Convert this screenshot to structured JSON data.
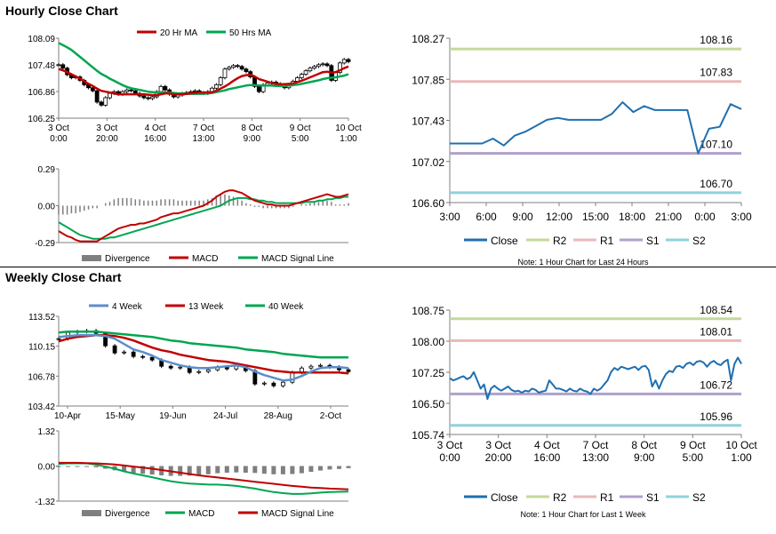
{
  "hourly_title": "Hourly Close Chart",
  "weekly_title": "Weekly Close Chart",
  "colors": {
    "ma_short": "#c00000",
    "ma_long": "#00a651",
    "close": "#1f6fb0",
    "r2": "#c4d89a",
    "r1": "#eab8b8",
    "s1": "#b0a0cc",
    "s2": "#92d0de",
    "candle": "#000000",
    "divergence": "#7f7f7f",
    "ma4": "#5b8ecb",
    "axis": "#7f7f7f"
  },
  "chart_data": [
    {
      "id": "hourly_price",
      "type": "line",
      "title": "Hourly Close Chart",
      "legend": [
        "20 Hr MA",
        "50 Hrs MA"
      ],
      "x_ticks": [
        [
          "3 Oct",
          "0:00"
        ],
        [
          "3 Oct",
          "20:00"
        ],
        [
          "4 Oct",
          "16:00"
        ],
        [
          "7 Oct",
          "13:00"
        ],
        [
          "8 Oct",
          "9:00"
        ],
        [
          "9 Oct",
          "5:00"
        ],
        [
          "10 Oct",
          "1:00"
        ]
      ],
      "y_ticks": [
        "108.09",
        "107.48",
        "106.86",
        "106.25"
      ],
      "ylim": [
        106.25,
        108.09
      ],
      "close": [
        107.48,
        107.4,
        107.25,
        107.18,
        107.2,
        107.12,
        107.02,
        106.95,
        106.88,
        106.62,
        106.55,
        106.72,
        106.82,
        106.86,
        106.8,
        106.86,
        106.9,
        106.88,
        106.82,
        106.76,
        106.72,
        106.7,
        106.74,
        106.86,
        106.98,
        106.9,
        106.8,
        106.74,
        106.78,
        106.82,
        106.84,
        106.86,
        106.88,
        106.84,
        106.82,
        106.86,
        106.94,
        107.02,
        107.18,
        107.38,
        107.42,
        107.46,
        107.44,
        107.38,
        107.32,
        107.2,
        106.98,
        106.86,
        107.02,
        107.06,
        107.08,
        107.04,
        107.0,
        106.95,
        107.02,
        107.1,
        107.18,
        107.26,
        107.34,
        107.4,
        107.44,
        107.48,
        107.5,
        107.46,
        107.12,
        107.3,
        107.52,
        107.6,
        107.55
      ],
      "ma20": [
        107.38,
        107.35,
        107.31,
        107.26,
        107.21,
        107.16,
        107.1,
        107.04,
        106.99,
        106.93,
        106.88,
        106.86,
        106.84,
        106.82,
        106.8,
        106.8,
        106.8,
        106.8,
        106.8,
        106.8,
        106.8,
        106.79,
        106.78,
        106.78,
        106.8,
        106.82,
        106.82,
        106.8,
        106.8,
        106.8,
        106.81,
        106.82,
        106.83,
        106.84,
        106.84,
        106.84,
        106.85,
        106.88,
        106.93,
        106.98,
        107.04,
        107.11,
        107.17,
        107.22,
        107.24,
        107.25,
        107.21,
        107.15,
        107.12,
        107.09,
        107.06,
        107.04,
        107.03,
        107.03,
        107.04,
        107.05,
        107.08,
        107.11,
        107.15,
        107.19,
        107.23,
        107.27,
        107.31,
        107.32,
        107.3,
        107.31,
        107.35,
        107.4,
        107.44
      ],
      "ma50": [
        107.98,
        107.93,
        107.88,
        107.82,
        107.74,
        107.66,
        107.58,
        107.5,
        107.42,
        107.34,
        107.27,
        107.22,
        107.16,
        107.11,
        107.06,
        107.01,
        106.97,
        106.94,
        106.92,
        106.9,
        106.88,
        106.86,
        106.85,
        106.84,
        106.84,
        106.84,
        106.84,
        106.83,
        106.82,
        106.82,
        106.81,
        106.81,
        106.81,
        106.81,
        106.81,
        106.82,
        106.83,
        106.85,
        106.87,
        106.89,
        106.92,
        106.94,
        106.96,
        106.98,
        107.0,
        107.01,
        107.01,
        107.0,
        107.0,
        107.0,
        107.0,
        106.99,
        106.99,
        106.99,
        107.0,
        107.01,
        107.02,
        107.04,
        107.06,
        107.08,
        107.1,
        107.12,
        107.15,
        107.17,
        107.18,
        107.19,
        107.21,
        107.23,
        107.26
      ]
    },
    {
      "id": "hourly_macd",
      "type": "line",
      "legend": [
        "Divergence",
        "MACD",
        "MACD Signal Line"
      ],
      "y_ticks": [
        "0.29",
        "0.00",
        "-0.29"
      ],
      "ylim": [
        -0.29,
        0.29
      ],
      "macd": [
        -0.2,
        -0.22,
        -0.24,
        -0.25,
        -0.27,
        -0.28,
        -0.28,
        -0.28,
        -0.28,
        -0.28,
        -0.26,
        -0.24,
        -0.22,
        -0.2,
        -0.18,
        -0.17,
        -0.16,
        -0.15,
        -0.15,
        -0.14,
        -0.14,
        -0.13,
        -0.12,
        -0.11,
        -0.09,
        -0.08,
        -0.07,
        -0.06,
        -0.06,
        -0.05,
        -0.04,
        -0.03,
        -0.02,
        -0.01,
        0.0,
        0.02,
        0.04,
        0.07,
        0.09,
        0.11,
        0.12,
        0.12,
        0.11,
        0.1,
        0.08,
        0.06,
        0.04,
        0.03,
        0.02,
        0.01,
        0.01,
        0.0,
        0.0,
        0.0,
        0.0,
        0.01,
        0.02,
        0.03,
        0.04,
        0.05,
        0.06,
        0.07,
        0.08,
        0.09,
        0.08,
        0.07,
        0.07,
        0.08,
        0.09
      ],
      "signal": [
        -0.13,
        -0.15,
        -0.17,
        -0.19,
        -0.21,
        -0.23,
        -0.24,
        -0.25,
        -0.26,
        -0.26,
        -0.26,
        -0.26,
        -0.25,
        -0.25,
        -0.24,
        -0.23,
        -0.22,
        -0.21,
        -0.2,
        -0.19,
        -0.18,
        -0.17,
        -0.16,
        -0.15,
        -0.14,
        -0.13,
        -0.12,
        -0.11,
        -0.1,
        -0.09,
        -0.08,
        -0.07,
        -0.06,
        -0.05,
        -0.04,
        -0.03,
        -0.02,
        -0.01,
        0.0,
        0.02,
        0.04,
        0.05,
        0.06,
        0.06,
        0.06,
        0.05,
        0.05,
        0.04,
        0.04,
        0.03,
        0.03,
        0.02,
        0.02,
        0.02,
        0.02,
        0.02,
        0.02,
        0.02,
        0.03,
        0.03,
        0.03,
        0.04,
        0.04,
        0.05,
        0.05,
        0.06,
        0.06,
        0.07,
        0.07
      ]
    },
    {
      "id": "hourly_levels",
      "type": "line",
      "legend": [
        "Close",
        "R2",
        "R1",
        "S1",
        "S2"
      ],
      "note": "Note: 1 Hour Chart for Last 24 Hours",
      "x_ticks": [
        "3:00",
        "6:00",
        "9:00",
        "12:00",
        "15:00",
        "18:00",
        "21:00",
        "0:00",
        "3:00"
      ],
      "y_ticks": [
        "108.27",
        "107.85",
        "107.43",
        "107.02",
        "106.60"
      ],
      "ylim": [
        106.6,
        108.27
      ],
      "close": [
        107.2,
        107.2,
        107.2,
        107.2,
        107.25,
        107.18,
        107.28,
        107.32,
        107.38,
        107.44,
        107.46,
        107.44,
        107.44,
        107.44,
        107.44,
        107.5,
        107.62,
        107.52,
        107.58,
        107.54,
        107.54,
        107.54,
        107.54,
        107.1,
        107.35,
        107.37,
        107.6,
        107.55
      ],
      "levels": [
        {
          "name": "R2",
          "value": 108.16,
          "label": "108.16"
        },
        {
          "name": "R1",
          "value": 107.83,
          "label": "107.83"
        },
        {
          "name": "S1",
          "value": 107.1,
          "label": "107.10"
        },
        {
          "name": "S2",
          "value": 106.7,
          "label": "106.70"
        }
      ]
    },
    {
      "id": "weekly_price",
      "type": "line",
      "title": "Weekly Close Chart",
      "legend": [
        "4 Week",
        "13 Week",
        "40 Week"
      ],
      "x_ticks": [
        "10-Apr",
        "15-May",
        "19-Jun",
        "24-Jul",
        "28-Aug",
        "2-Oct"
      ],
      "y_ticks": [
        "113.52",
        "110.15",
        "106.78",
        "103.42"
      ],
      "ylim": [
        103.42,
        113.52
      ],
      "close": [
        111.0,
        111.7,
        111.8,
        111.9,
        111.6,
        110.2,
        109.4,
        109.5,
        109.0,
        108.9,
        108.6,
        107.9,
        107.7,
        107.8,
        107.2,
        107.3,
        107.5,
        107.8,
        107.6,
        107.9,
        107.4,
        105.9,
        106.0,
        105.7,
        106.1,
        107.2,
        107.7,
        107.9,
        108.0,
        107.8,
        107.5,
        107.3
      ],
      "ma4": [
        111.2,
        111.3,
        111.4,
        111.4,
        111.4,
        111.3,
        111.0,
        110.4,
        109.8,
        109.5,
        109.1,
        108.6,
        108.3,
        108.0,
        107.8,
        107.7,
        107.7,
        107.8,
        107.9,
        108.0,
        107.8,
        107.3,
        106.9,
        106.6,
        106.3,
        106.4,
        106.8,
        107.3,
        107.7,
        107.8,
        107.8,
        107.7
      ],
      "ma13": [
        110.7,
        111.0,
        111.2,
        111.3,
        111.4,
        111.4,
        111.3,
        111.1,
        110.8,
        110.4,
        110.0,
        109.7,
        109.5,
        109.2,
        109.0,
        108.8,
        108.6,
        108.5,
        108.4,
        108.2,
        108.0,
        107.8,
        107.6,
        107.4,
        107.3,
        107.2,
        107.2,
        107.2,
        107.2,
        107.2,
        107.2,
        107.1
      ],
      "ma40": [
        111.7,
        111.8,
        111.8,
        111.8,
        111.8,
        111.7,
        111.6,
        111.5,
        111.4,
        111.3,
        111.2,
        111.0,
        110.8,
        110.7,
        110.5,
        110.4,
        110.3,
        110.2,
        110.1,
        110.0,
        109.8,
        109.7,
        109.6,
        109.5,
        109.3,
        109.2,
        109.1,
        109.0,
        108.9,
        108.9,
        108.9,
        108.9
      ]
    },
    {
      "id": "weekly_macd",
      "type": "line",
      "legend": [
        "Divergence",
        "MACD",
        "MACD Signal Line"
      ],
      "y_ticks": [
        "1.32",
        "0.00",
        "-1.32"
      ],
      "ylim": [
        -1.32,
        1.32
      ],
      "macd": [
        0.08,
        0.1,
        0.1,
        0.1,
        0.05,
        -0.02,
        -0.1,
        -0.2,
        -0.28,
        -0.35,
        -0.42,
        -0.5,
        -0.57,
        -0.62,
        -0.66,
        -0.68,
        -0.7,
        -0.7,
        -0.72,
        -0.75,
        -0.8,
        -0.85,
        -0.92,
        -0.98,
        -1.02,
        -1.05,
        -1.05,
        -1.03,
        -1.0,
        -0.98,
        -0.97,
        -0.96
      ],
      "signal": [
        0.12,
        0.12,
        0.12,
        0.11,
        0.1,
        0.08,
        0.06,
        0.02,
        -0.02,
        -0.06,
        -0.1,
        -0.15,
        -0.2,
        -0.25,
        -0.3,
        -0.35,
        -0.39,
        -0.43,
        -0.47,
        -0.51,
        -0.55,
        -0.59,
        -0.63,
        -0.67,
        -0.71,
        -0.75,
        -0.78,
        -0.81,
        -0.83,
        -0.85,
        -0.86,
        -0.88
      ],
      "divergence": [
        -0.04,
        -0.02,
        -0.02,
        -0.01,
        -0.05,
        -0.1,
        -0.16,
        -0.22,
        -0.26,
        -0.29,
        -0.32,
        -0.35,
        -0.37,
        -0.37,
        -0.36,
        -0.33,
        -0.31,
        -0.27,
        -0.25,
        -0.24,
        -0.25,
        -0.26,
        -0.29,
        -0.31,
        -0.31,
        -0.3,
        -0.27,
        -0.22,
        -0.17,
        -0.13,
        -0.11,
        -0.08
      ]
    },
    {
      "id": "weekly_levels",
      "type": "line",
      "legend": [
        "Close",
        "R2",
        "R1",
        "S1",
        "S2"
      ],
      "note": "Note: 1 Hour Chart for Last 1 Week",
      "x_ticks": [
        [
          "3 Oct",
          "0:00"
        ],
        [
          "3 Oct",
          "20:00"
        ],
        [
          "4 Oct",
          "16:00"
        ],
        [
          "7 Oct",
          "13:00"
        ],
        [
          "8 Oct",
          "9:00"
        ],
        [
          "9 Oct",
          "5:00"
        ],
        [
          "10 Oct",
          "1:00"
        ]
      ],
      "y_ticks": [
        "108.75",
        "108.00",
        "107.25",
        "106.50",
        "105.74"
      ],
      "ylim": [
        105.74,
        108.75
      ],
      "close": [
        107.1,
        107.05,
        107.08,
        107.12,
        107.15,
        107.08,
        107.12,
        107.25,
        107.05,
        106.85,
        106.95,
        106.6,
        106.85,
        106.92,
        106.85,
        106.8,
        106.85,
        106.9,
        106.82,
        106.78,
        106.8,
        106.75,
        106.8,
        106.78,
        106.85,
        106.82,
        106.75,
        106.78,
        106.8,
        107.05,
        106.95,
        106.85,
        106.85,
        106.82,
        106.78,
        106.85,
        106.8,
        106.78,
        106.85,
        106.8,
        106.78,
        106.72,
        106.85,
        106.8,
        106.85,
        106.95,
        107.05,
        107.25,
        107.35,
        107.3,
        107.38,
        107.35,
        107.32,
        107.35,
        107.38,
        107.3,
        107.38,
        107.4,
        107.3,
        106.9,
        107.05,
        106.85,
        107.05,
        107.2,
        107.28,
        107.25,
        107.38,
        107.4,
        107.35,
        107.45,
        107.48,
        107.42,
        107.5,
        107.52,
        107.48,
        107.38,
        107.48,
        107.52,
        107.45,
        107.42,
        107.5,
        107.55,
        107.05,
        107.45,
        107.6,
        107.45
      ],
      "levels": [
        {
          "name": "R2",
          "value": 108.54,
          "label": "108.54"
        },
        {
          "name": "R1",
          "value": 108.01,
          "label": "108.01"
        },
        {
          "name": "S1",
          "value": 106.72,
          "label": "106.72"
        },
        {
          "name": "S2",
          "value": 105.96,
          "label": "105.96"
        }
      ]
    }
  ]
}
